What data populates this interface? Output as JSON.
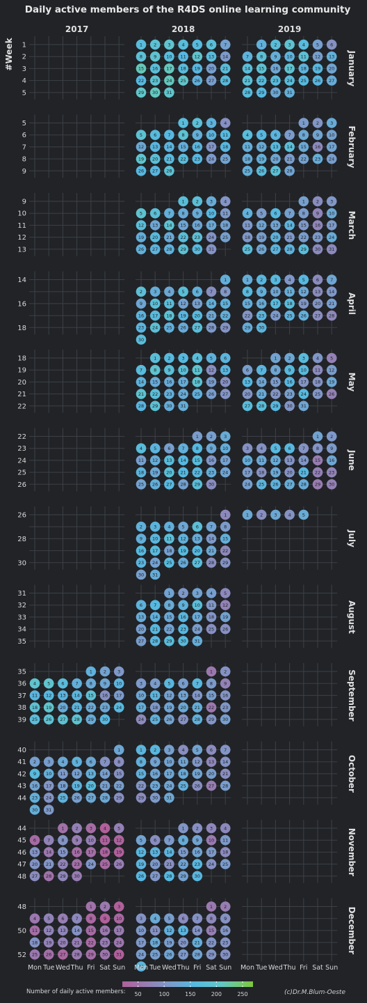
{
  "chart_data": {
    "type": "heatmap",
    "title": "Daily active members of the R4DS online learning community",
    "years": [
      "2017",
      "2018",
      "2019"
    ],
    "months": [
      "January",
      "February",
      "March",
      "April",
      "May",
      "June",
      "July",
      "August",
      "September",
      "October",
      "November",
      "December"
    ],
    "weekdays": [
      "Mon",
      "Tue",
      "Wed",
      "Thu",
      "Fri",
      "Sat",
      "Sun"
    ],
    "y_axis_label": "#Week",
    "data_start": "2017-09-01",
    "data_end": "2019-07-05",
    "month_week_labels": [
      [
        1,
        2,
        3,
        4,
        5
      ],
      [
        5,
        6,
        7,
        8,
        9
      ],
      [
        9,
        10,
        11,
        12,
        13
      ],
      [
        14,
        16,
        18
      ],
      [
        18,
        19,
        20,
        21,
        22
      ],
      [
        22,
        23,
        24,
        25,
        26
      ],
      [
        26,
        28,
        30
      ],
      [
        31,
        32,
        33,
        34,
        35
      ],
      [
        35,
        36,
        37,
        38,
        39
      ],
      [
        40,
        41,
        42,
        43,
        44
      ],
      [
        44,
        45,
        46,
        47,
        48
      ],
      [
        48,
        50,
        52
      ]
    ],
    "monthly_level": {
      "2017": [
        null,
        null,
        null,
        null,
        null,
        null,
        null,
        null,
        165,
        135,
        70,
        65
      ],
      "2018": [
        180,
        165,
        160,
        150,
        160,
        145,
        150,
        140,
        120,
        120,
        125,
        120
      ],
      "2019": [
        160,
        145,
        140,
        135,
        135,
        130,
        115,
        null,
        null,
        null,
        null,
        null
      ]
    },
    "legend": {
      "title": "Number of daily active members:",
      "ticks": [
        50,
        100,
        150,
        200,
        250
      ],
      "range": [
        20,
        270
      ]
    },
    "colors": [
      "#a45f97",
      "#8d87bb",
      "#56b8e0",
      "#62c7c9",
      "#8ed24c",
      "#7ec83a"
    ]
  },
  "credit": "(c)Dr.M.Blum-Oeste"
}
